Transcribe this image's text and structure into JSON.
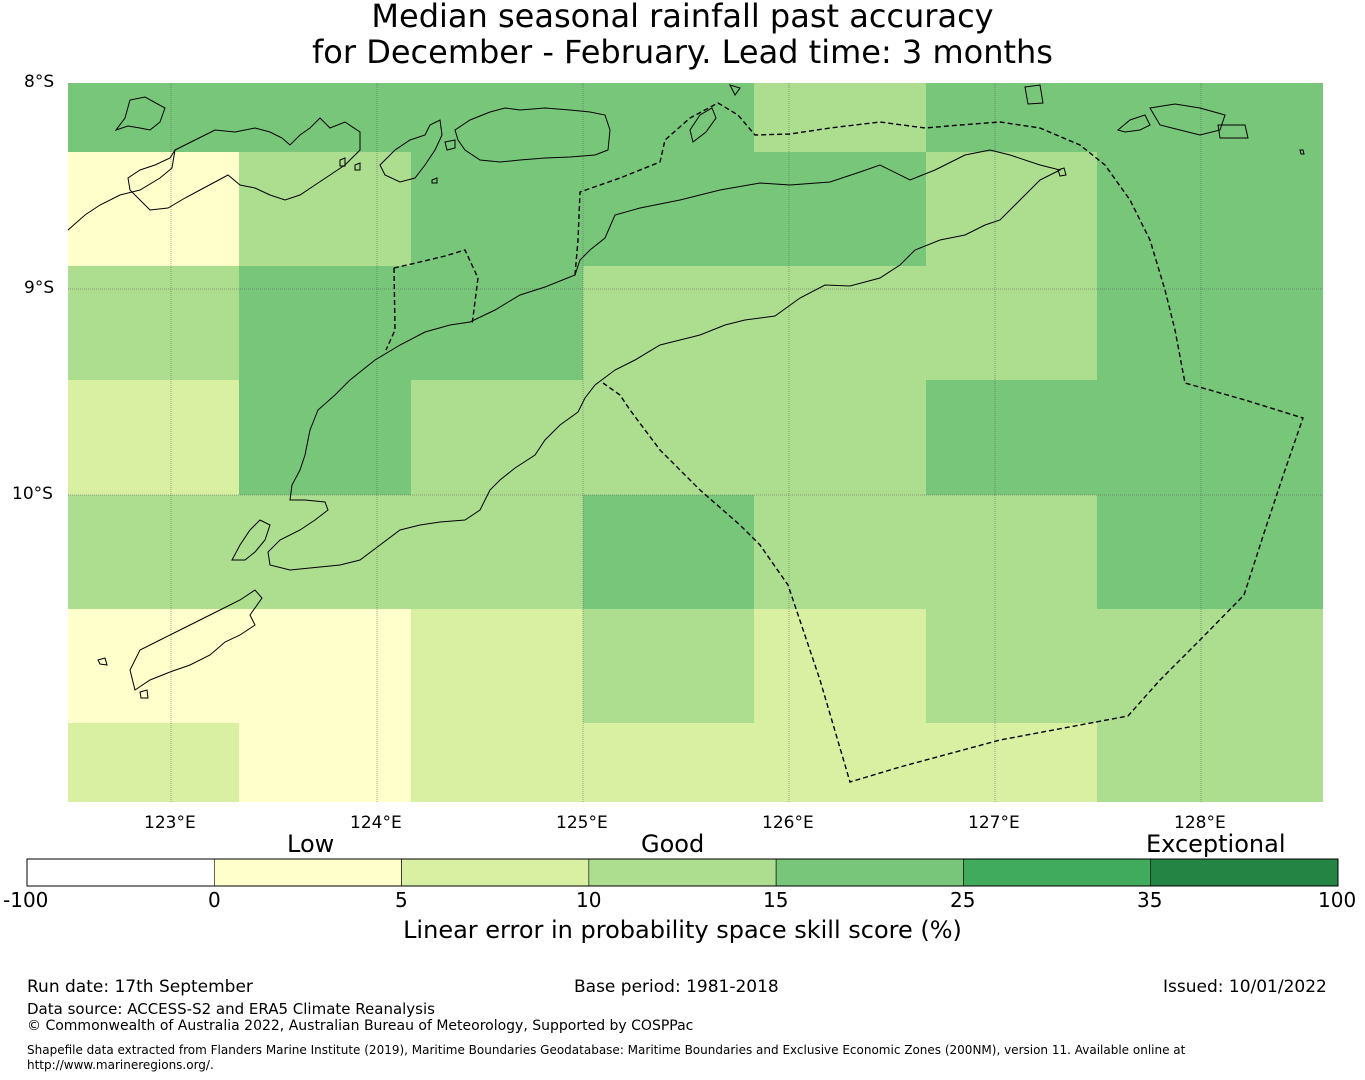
{
  "title": {
    "line1": "Median seasonal rainfall past accuracy",
    "line2": "for December - February. Lead time: 3 months"
  },
  "map": {
    "lat_labels": [
      "8°S",
      "9°S",
      "10°S"
    ],
    "lon_labels": [
      "123°E",
      "124°E",
      "125°E",
      "126°E",
      "127°E",
      "128°E"
    ],
    "skill_grid": [
      [
        15,
        15,
        15,
        15,
        10,
        15,
        15
      ],
      [
        0,
        10,
        15,
        15,
        15,
        10,
        15
      ],
      [
        10,
        15,
        15,
        10,
        10,
        10,
        15
      ],
      [
        5,
        15,
        10,
        10,
        10,
        15,
        15
      ],
      [
        10,
        10,
        10,
        15,
        10,
        10,
        15
      ],
      [
        0,
        0,
        5,
        10,
        5,
        10,
        10
      ],
      [
        5,
        0,
        5,
        5,
        5,
        5,
        10
      ]
    ],
    "colors": {
      "low": "#ffffcc",
      "low_mid": "#d9f0a3",
      "good": "#addd8e",
      "good_high": "#78c679",
      "high": "#41ab5d",
      "exceptional": "#238443"
    }
  },
  "colorbar": {
    "categories": [
      "Low",
      "Good",
      "Exceptional"
    ],
    "ticks": [
      "-100",
      "0",
      "5",
      "10",
      "15",
      "25",
      "35",
      "100"
    ],
    "colors": [
      "#ffffff",
      "#ffffcc",
      "#d9f0a3",
      "#addd8e",
      "#78c679",
      "#41ab5d",
      "#238443"
    ],
    "label": "Linear error in probability space skill score (%)"
  },
  "footer": {
    "run_date": "Run date: 17th September",
    "base_period": "Base period: 1981-2018",
    "issued": "Issued: 10/01/2022",
    "data_source": "Data source: ACCESS-S2 and ERA5 Climate Reanalysis",
    "copyright": "© Commonwealth of Australia 2022, Australian Bureau of Meteorology, Supported by COSPPac",
    "shapefile": "Shapefile data extracted from Flanders Marine Institute (2019), Maritime Boundaries Geodatabase: Maritime Boundaries and Exclusive Economic Zones (200NM), version 11. Available online at http://www.marineregions.org/."
  }
}
